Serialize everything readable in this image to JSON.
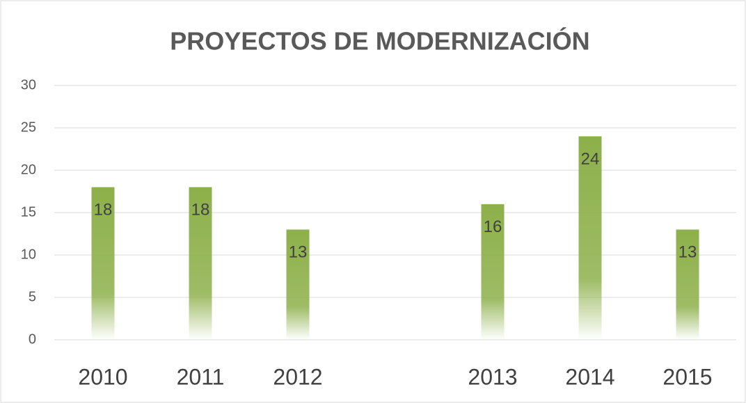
{
  "chart_data": {
    "type": "bar",
    "title": "PROYECTOS DE MODERNIZACIÓN",
    "categories": [
      "2010",
      "2011",
      "2012",
      null,
      "2013",
      "2014",
      "2015"
    ],
    "values": [
      18,
      18,
      13,
      null,
      16,
      24,
      13
    ],
    "color": "#8db04a",
    "ylim": [
      0,
      30
    ],
    "yticks": [
      0,
      5,
      10,
      15,
      20,
      25,
      30
    ],
    "grid": true
  }
}
